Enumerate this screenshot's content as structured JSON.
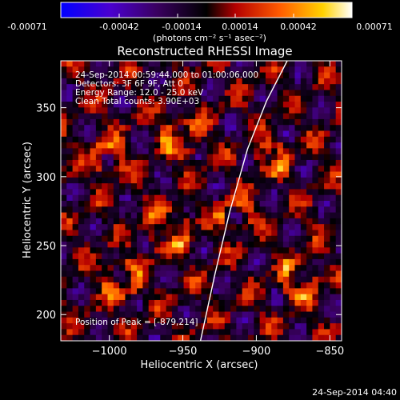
{
  "colorbar": {
    "ticks": [
      "-0.00071",
      "-0.00042",
      "-0.00014",
      "0.00014",
      "0.00042",
      "0.00071"
    ],
    "units_line": "(photons cm⁻² s⁻¹ asec⁻²)",
    "colors": [
      "#0000ff",
      "#5a00c8",
      "#000000",
      "#b40000",
      "#ff6a00",
      "#ffff6a",
      "#ffffff"
    ]
  },
  "chart_data": {
    "type": "heatmap",
    "title": "Reconstructed RHESSI Image",
    "xlabel": "Heliocentric X (arcsec)",
    "ylabel": "Heliocentric Y (arcsec)",
    "xlim": [
      -1033,
      -842
    ],
    "ylim": [
      181,
      384
    ],
    "x_ticks": [
      -1000,
      -950,
      -900,
      -850
    ],
    "x_tick_labels": [
      "−1000",
      "−950",
      "−900",
      "−850"
    ],
    "y_ticks": [
      200,
      250,
      300,
      350
    ],
    "y_tick_labels": [
      "200",
      "250",
      "300",
      "350"
    ],
    "limb_line": [
      [
        -938,
        181
      ],
      [
        -928,
        230
      ],
      [
        -918,
        275
      ],
      [
        -906,
        320
      ],
      [
        -893,
        355
      ],
      [
        -879,
        384
      ]
    ],
    "value_range": [
      -0.00071,
      0.00071
    ],
    "annotations": [
      "24-Sep-2014 00:59:44.000 to 01:00:06.000",
      "Detectors: 3F 6F 9F, Att 0",
      "Energy Range: 12.0 - 25.0 keV",
      "Clean    Total counts: 3.90E+03"
    ],
    "peak_label": "Position of Peak = [-879,214]"
  },
  "footer": {
    "timestamp": "24-Sep-2014 04:40"
  }
}
